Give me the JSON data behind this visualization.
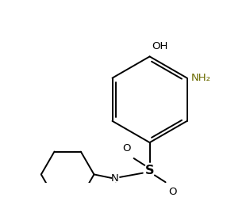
{
  "bg_color": "#ffffff",
  "line_color": "#000000",
  "label_color_black": "#000000",
  "label_color_NH2": "#6b6b00",
  "label_OH": "OH",
  "label_NH2": "NH₂",
  "label_S": "S",
  "label_O1": "O",
  "label_O2": "O",
  "label_N": "N",
  "figsize": [
    2.86,
    2.54
  ],
  "dpi": 100,
  "lw": 1.4,
  "font_size": 9.5
}
